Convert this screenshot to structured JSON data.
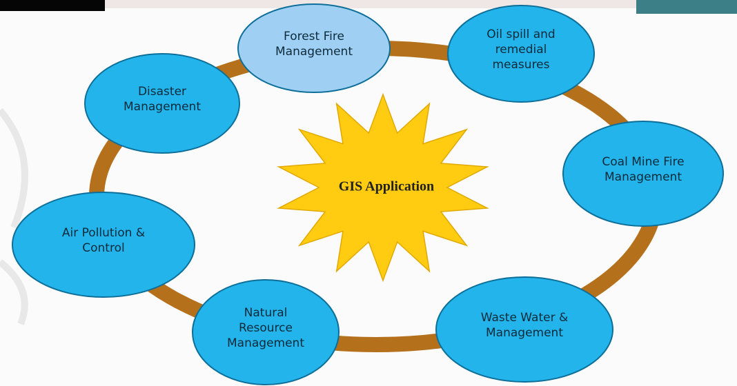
{
  "title": "GIS Application",
  "nodes": [
    {
      "lines": [
        "Forest Fire",
        "Management"
      ]
    },
    {
      "lines": [
        "Oil spill and",
        "remedial",
        "measures"
      ]
    },
    {
      "lines": [
        "Coal Mine Fire",
        "Management"
      ]
    },
    {
      "lines": [
        "Waste Water &",
        "Management"
      ]
    },
    {
      "lines": [
        "Natural",
        "Resource",
        "Management"
      ]
    },
    {
      "lines": [
        "Air Pollution &",
        "Control"
      ]
    },
    {
      "lines": [
        "Disaster",
        "Management"
      ]
    }
  ]
}
